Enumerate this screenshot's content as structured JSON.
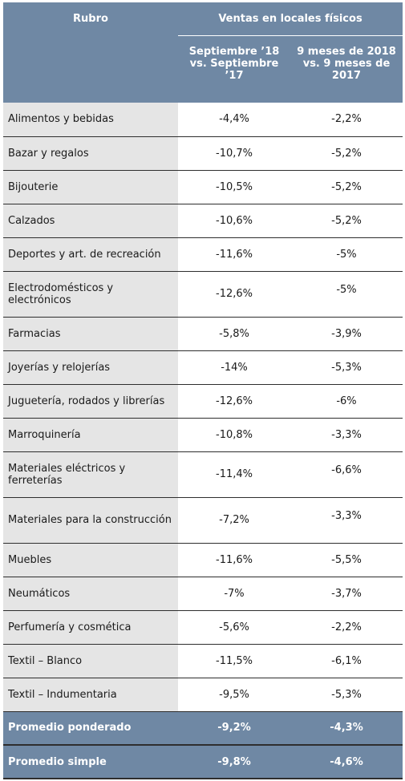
{
  "header": {
    "rubro": "Rubro",
    "ventas": "Ventas en locales físicos",
    "col_sep": "Septiembre ’18 vs. Septiembre ’17",
    "col_9m": "9 meses de 2018 vs. 9 meses de 2017"
  },
  "rows": [
    {
      "rubro": "Alimentos y bebidas",
      "sep": "-4,4%",
      "nine": "-2,2%"
    },
    {
      "rubro": "Bazar y regalos",
      "sep": "-10,7%",
      "nine": "-5,2%"
    },
    {
      "rubro": "Bijouterie",
      "sep": "-10,5%",
      "nine": "-5,2%"
    },
    {
      "rubro": "Calzados",
      "sep": "-10,6%",
      "nine": "-5,2%"
    },
    {
      "rubro": "Deportes y art. de recreación",
      "sep": "-11,6%",
      "nine": "-5%"
    },
    {
      "rubro": "Electrodomésticos y electrónicos",
      "sep": "-12,6%",
      "nine": "-5%"
    },
    {
      "rubro": "Farmacias",
      "sep": "-5,8%",
      "nine": "-3,9%"
    },
    {
      "rubro": "Joyerías y relojerías",
      "sep": "-14%",
      "nine": "-5,3%"
    },
    {
      "rubro": "Juguetería, rodados y librerías",
      "sep": "-12,6%",
      "nine": "-6%"
    },
    {
      "rubro": "Marroquinería",
      "sep": "-10,8%",
      "nine": "-3,3%"
    },
    {
      "rubro": "Materiales eléctricos y ferreterías",
      "sep": "-11,4%",
      "nine": "-6,6%"
    },
    {
      "rubro": "Materiales para la construcción",
      "sep": "-7,2%",
      "nine": "-3,3%"
    },
    {
      "rubro": "Muebles",
      "sep": "-11,6%",
      "nine": "-5,5%"
    },
    {
      "rubro": "Neumáticos",
      "sep": "-7%",
      "nine": "-3,7%"
    },
    {
      "rubro": "Perfumería y cosmética",
      "sep": "-5,6%",
      "nine": "-2,2%"
    },
    {
      "rubro": "Textil – Blanco",
      "sep": "-11,5%",
      "nine": "-6,1%"
    },
    {
      "rubro": "Textil – Indumentaria",
      "sep": "-9,5%",
      "nine": "-5,3%"
    }
  ],
  "summary": [
    {
      "rubro": "Promedio ponderado",
      "sep": "-9,2%",
      "nine": "-4,3%"
    },
    {
      "rubro": "Promedio simple",
      "sep": "-9,8%",
      "nine": "-4,6%"
    }
  ]
}
